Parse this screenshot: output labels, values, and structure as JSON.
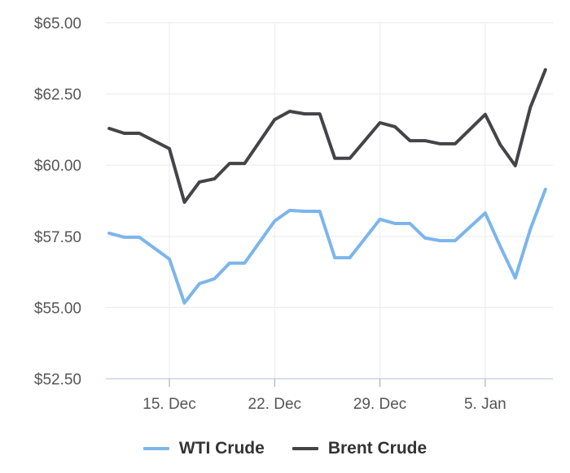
{
  "chart_data": {
    "type": "line",
    "title": "",
    "xlabel": "",
    "ylabel": "",
    "ylim": [
      52.5,
      65.0
    ],
    "y_ticks": [
      "$52.50",
      "$55.00",
      "$57.50",
      "$60.00",
      "$62.50",
      "$65.00"
    ],
    "y_tick_values": [
      52.5,
      55.0,
      57.5,
      60.0,
      62.5,
      65.0
    ],
    "x_ticks": [
      "15. Dec",
      "22. Dec",
      "29. Dec",
      "5. Jan"
    ],
    "grid": true,
    "legend_position": "bottom",
    "x": [
      "11. Dec",
      "12. Dec",
      "13. Dec",
      "15. Dec",
      "16. Dec",
      "17. Dec",
      "18. Dec",
      "19. Dec",
      "20. Dec",
      "22. Dec",
      "23. Dec",
      "24. Dec",
      "25. Dec",
      "26. Dec",
      "27. Dec",
      "29. Dec",
      "30. Dec",
      "31. Dec",
      "1. Jan",
      "2. Jan",
      "3. Jan",
      "5. Jan",
      "6. Jan",
      "7. Jan",
      "8. Jan",
      "9. Jan"
    ],
    "x_day_offsets": [
      -4,
      -3,
      -2,
      0,
      1,
      2,
      3,
      4,
      5,
      7,
      8,
      9,
      10,
      11,
      12,
      14,
      15,
      16,
      17,
      18,
      19,
      21,
      22,
      23,
      24,
      25
    ],
    "series": [
      {
        "name": "WTI Crude",
        "color": "#7cb5ec",
        "values": [
          57.61,
          57.47,
          57.47,
          56.7,
          55.16,
          55.84,
          56.01,
          56.56,
          56.56,
          58.04,
          58.41,
          58.38,
          58.38,
          56.75,
          56.75,
          58.1,
          57.95,
          57.95,
          57.44,
          57.35,
          57.35,
          58.32,
          57.15,
          56.04,
          57.75,
          59.15
        ]
      },
      {
        "name": "Brent Crude",
        "color": "#434348",
        "values": [
          61.29,
          61.12,
          61.12,
          60.58,
          58.7,
          59.41,
          59.52,
          60.06,
          60.06,
          61.6,
          61.89,
          61.8,
          61.8,
          60.24,
          60.24,
          61.49,
          61.35,
          60.86,
          60.86,
          60.75,
          60.75,
          61.78,
          60.72,
          59.98,
          62.03,
          63.35
        ]
      }
    ]
  },
  "legend": {
    "items": [
      {
        "label": "WTI Crude",
        "color": "#7cb5ec"
      },
      {
        "label": "Brent Crude",
        "color": "#434348"
      }
    ]
  },
  "colors": {
    "grid": "#eeeeee",
    "axis_line": "#ccd6eb",
    "tick": "#b0b0b0",
    "label": "#555555"
  }
}
